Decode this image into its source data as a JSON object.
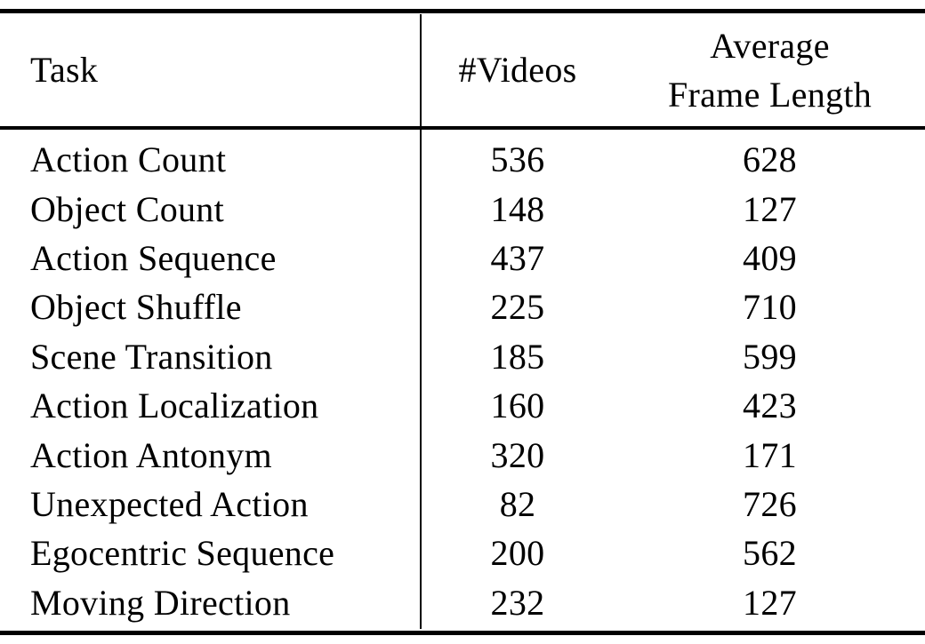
{
  "colors": {
    "text": "#000000",
    "background": "#ffffff",
    "rule": "#000000"
  },
  "chart_data": {
    "type": "table",
    "columns": [
      {
        "label": "Task"
      },
      {
        "label": "#Videos"
      },
      {
        "label": "Average Frame Length",
        "line1": "Average",
        "line2": "Frame Length"
      }
    ],
    "rows": [
      {
        "task": "Action Count",
        "videos": "536",
        "avg_frame_length": "628"
      },
      {
        "task": "Object Count",
        "videos": "148",
        "avg_frame_length": "127"
      },
      {
        "task": "Action Sequence",
        "videos": "437",
        "avg_frame_length": "409"
      },
      {
        "task": "Object Shuffle",
        "videos": "225",
        "avg_frame_length": "710"
      },
      {
        "task": "Scene Transition",
        "videos": "185",
        "avg_frame_length": "599"
      },
      {
        "task": "Action Localization",
        "videos": "160",
        "avg_frame_length": "423"
      },
      {
        "task": "Action Antonym",
        "videos": "320",
        "avg_frame_length": "171"
      },
      {
        "task": "Unexpected Action",
        "videos": "82",
        "avg_frame_length": "726"
      },
      {
        "task": "Egocentric Sequence",
        "videos": "200",
        "avg_frame_length": "562"
      },
      {
        "task": "Moving Direction",
        "videos": "232",
        "avg_frame_length": "127"
      }
    ]
  }
}
